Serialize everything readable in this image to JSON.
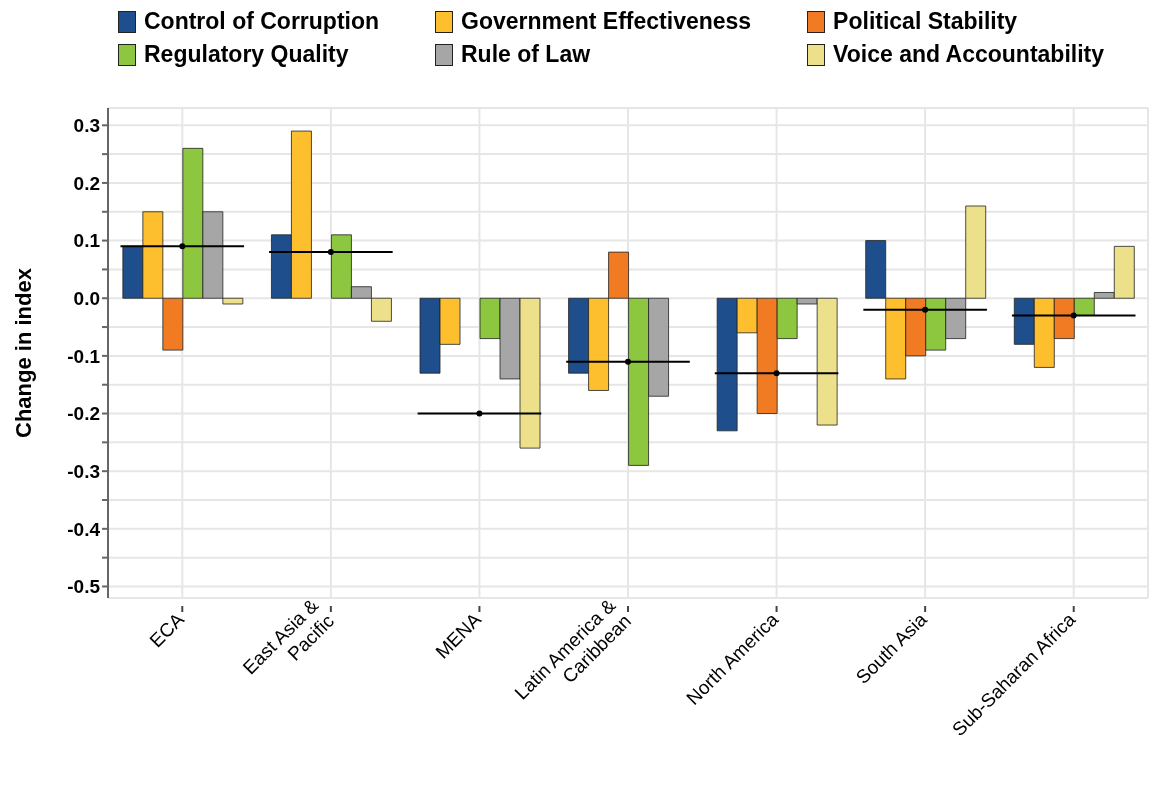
{
  "chart_data": {
    "type": "bar",
    "ylabel": "Change in index",
    "categories": [
      "ECA",
      "East Asia &\nPacific",
      "MENA",
      "Latin America &\nCaribbean",
      "North America",
      "South Asia",
      "Sub-Saharan Africa"
    ],
    "series": [
      {
        "name": "Control of Corruption",
        "color": "#1f4e8c",
        "values": [
          0.09,
          0.11,
          -0.13,
          -0.13,
          -0.23,
          0.1,
          -0.08
        ]
      },
      {
        "name": "Government Effectiveness",
        "color": "#fdbf2d",
        "values": [
          0.15,
          0.29,
          -0.08,
          -0.16,
          -0.06,
          -0.14,
          -0.12
        ]
      },
      {
        "name": "Political Stability",
        "color": "#f07b22",
        "values": [
          -0.09,
          0.0,
          0.0,
          0.08,
          -0.2,
          -0.1,
          -0.07
        ]
      },
      {
        "name": "Regulatory Quality",
        "color": "#8dc63f",
        "values": [
          0.26,
          0.11,
          -0.07,
          -0.29,
          -0.07,
          -0.09,
          -0.03
        ]
      },
      {
        "name": "Rule of Law",
        "color": "#a6a6a6",
        "values": [
          0.15,
          0.02,
          -0.14,
          -0.17,
          -0.01,
          -0.07,
          0.01
        ]
      },
      {
        "name": "Voice and Accountability",
        "color": "#ede08a",
        "values": [
          -0.01,
          -0.04,
          -0.26,
          0.0,
          -0.22,
          0.16,
          0.09
        ]
      },
      {
        "type": "scatter",
        "color": "#000000",
        "values": [
          0.09,
          0.08,
          -0.2,
          -0.11,
          -0.13,
          -0.02,
          -0.03
        ]
      }
    ],
    "ylim": [
      -0.52,
      0.33
    ],
    "yticks": [
      {
        "value": 0.3,
        "label": "0.3"
      },
      {
        "value": 0.25,
        "label": null
      },
      {
        "value": 0.2,
        "label": "0.2"
      },
      {
        "value": 0.15,
        "label": null
      },
      {
        "value": 0.1,
        "label": "0.1"
      },
      {
        "value": 0.05,
        "label": null
      },
      {
        "value": 0,
        "label": "0.0"
      },
      {
        "value": -0.05,
        "label": null
      },
      {
        "value": -0.1,
        "label": "-0.1"
      },
      {
        "value": -0.15,
        "label": null
      },
      {
        "value": -0.2,
        "label": "-0.2"
      },
      {
        "value": -0.25,
        "label": null
      },
      {
        "value": -0.3,
        "label": "-0.3"
      },
      {
        "value": -0.35,
        "label": null
      },
      {
        "value": -0.4,
        "label": "-0.4"
      },
      {
        "value": -0.45,
        "label": null
      },
      {
        "value": -0.5,
        "label": "-0.5"
      }
    ],
    "grid": true,
    "legend": "top",
    "marker": "circle"
  }
}
